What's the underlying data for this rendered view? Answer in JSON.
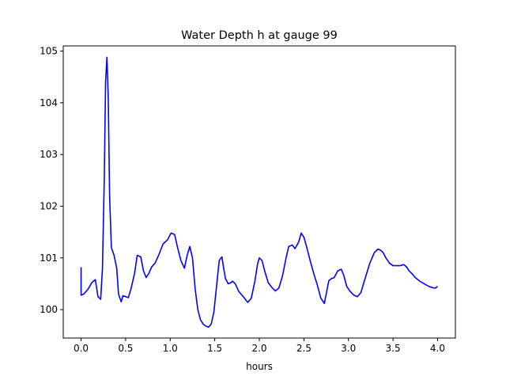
{
  "chart_data": {
    "type": "line",
    "title": "Water Depth h at gauge 99",
    "xlabel": "hours",
    "ylabel": "",
    "xlim": [
      -0.2,
      4.2
    ],
    "ylim": [
      99.45,
      105.1
    ],
    "x_ticks": [
      0.0,
      0.5,
      1.0,
      1.5,
      2.0,
      2.5,
      3.0,
      3.5,
      4.0
    ],
    "x_tick_labels": [
      "0.0",
      "0.5",
      "1.0",
      "1.5",
      "2.0",
      "2.5",
      "3.0",
      "3.5",
      "4.0"
    ],
    "y_ticks": [
      100,
      101,
      102,
      103,
      104,
      105
    ],
    "y_tick_labels": [
      "100",
      "101",
      "102",
      "103",
      "104",
      "105"
    ],
    "grid": false,
    "color": "#0000ff",
    "series": [
      {
        "x": [
          0.0,
          0.0,
          0.03,
          0.08,
          0.12,
          0.16,
          0.19,
          0.22,
          0.24,
          0.26,
          0.275,
          0.29,
          0.305,
          0.32,
          0.34,
          0.37,
          0.4,
          0.42,
          0.45,
          0.47,
          0.5,
          0.53,
          0.56,
          0.6,
          0.63,
          0.67,
          0.7,
          0.73,
          0.76,
          0.79,
          0.83,
          0.87,
          0.92,
          0.97,
          1.01,
          1.05,
          1.08,
          1.12,
          1.16,
          1.19,
          1.22,
          1.25,
          1.28,
          1.31,
          1.34,
          1.37,
          1.4,
          1.43,
          1.46,
          1.49,
          1.52,
          1.55,
          1.58,
          1.6,
          1.62,
          1.65,
          1.68,
          1.7,
          1.73,
          1.77,
          1.82,
          1.87,
          1.91,
          1.95,
          1.98,
          2.0,
          2.03,
          2.06,
          2.1,
          2.14,
          2.18,
          2.22,
          2.26,
          2.3,
          2.33,
          2.37,
          2.4,
          2.44,
          2.47,
          2.5,
          2.53,
          2.57,
          2.61,
          2.65,
          2.69,
          2.73,
          2.75,
          2.78,
          2.81,
          2.84,
          2.88,
          2.92,
          2.95,
          2.98,
          3.02,
          3.06,
          3.1,
          3.14,
          3.19,
          3.24,
          3.29,
          3.33,
          3.36,
          3.39,
          3.42,
          3.46,
          3.5,
          3.54,
          3.58,
          3.62,
          3.65,
          3.68,
          3.71,
          3.75,
          3.8,
          3.85,
          3.9,
          3.95,
          3.98,
          4.0
        ],
        "y": [
          100.82,
          100.28,
          100.3,
          100.4,
          100.52,
          100.58,
          100.25,
          100.2,
          100.8,
          102.5,
          104.4,
          104.88,
          104.1,
          102.2,
          101.2,
          101.05,
          100.8,
          100.3,
          100.15,
          100.27,
          100.25,
          100.23,
          100.4,
          100.7,
          101.05,
          101.02,
          100.75,
          100.62,
          100.7,
          100.82,
          100.9,
          101.05,
          101.27,
          101.35,
          101.48,
          101.45,
          101.22,
          100.95,
          100.8,
          101.05,
          101.22,
          101.0,
          100.4,
          100.0,
          99.8,
          99.72,
          99.68,
          99.66,
          99.72,
          99.95,
          100.45,
          100.95,
          101.02,
          100.8,
          100.6,
          100.5,
          100.52,
          100.55,
          100.5,
          100.35,
          100.25,
          100.14,
          100.22,
          100.55,
          100.88,
          101.0,
          100.95,
          100.75,
          100.52,
          100.43,
          100.36,
          100.42,
          100.65,
          101.0,
          101.22,
          101.25,
          101.18,
          101.3,
          101.48,
          101.4,
          101.22,
          100.95,
          100.7,
          100.48,
          100.22,
          100.12,
          100.3,
          100.56,
          100.6,
          100.62,
          100.75,
          100.78,
          100.65,
          100.45,
          100.35,
          100.28,
          100.25,
          100.33,
          100.62,
          100.9,
          101.1,
          101.17,
          101.15,
          101.1,
          101.0,
          100.9,
          100.85,
          100.85,
          100.85,
          100.87,
          100.83,
          100.75,
          100.7,
          100.62,
          100.55,
          100.5,
          100.45,
          100.42,
          100.42,
          100.45
        ]
      }
    ]
  }
}
